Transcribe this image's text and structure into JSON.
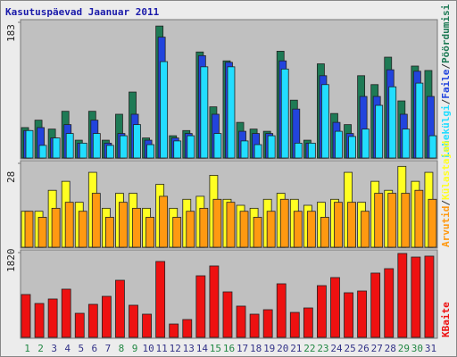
{
  "chart_data": [
    {
      "type": "bar",
      "title": "Kasutuspäevad Jaanuar 2011",
      "ylim": [
        0,
        183
      ],
      "yticks": [
        183
      ],
      "legend": "right",
      "separator": "/",
      "series": [
        {
          "name": "Lehekülgi",
          "color": "#22ddff",
          "values": [
            37,
            17,
            27,
            33,
            20,
            33,
            17,
            30,
            45,
            18,
            130,
            23,
            30,
            123,
            33,
            123,
            23,
            18,
            30,
            120,
            20,
            20,
            99,
            36,
            29,
            39,
            71,
            96,
            39,
            101,
            30
          ]
        },
        {
          "name": "Faile",
          "color": "#2244dd",
          "values": [
            37,
            41,
            27,
            45,
            20,
            51,
            20,
            33,
            59,
            24,
            163,
            27,
            33,
            138,
            59,
            129,
            36,
            33,
            33,
            131,
            66,
            20,
            111,
            48,
            33,
            83,
            83,
            119,
            59,
            117,
            83
          ]
        },
        {
          "name": "Pöördumisi",
          "color": "#1e7a55",
          "values": [
            41,
            51,
            39,
            63,
            24,
            63,
            24,
            59,
            89,
            27,
            178,
            30,
            37,
            143,
            69,
            131,
            48,
            39,
            36,
            144,
            78,
            24,
            127,
            60,
            45,
            111,
            99,
            136,
            77,
            124,
            118
          ]
        }
      ]
    },
    {
      "type": "bar",
      "ylim": [
        0,
        28
      ],
      "yticks": [
        28
      ],
      "legend": "right",
      "separator": "/",
      "series": [
        {
          "name": "Arvutid",
          "color": "#ff9911",
          "values": [
            12,
            10,
            13,
            15,
            12,
            18,
            10,
            15,
            13,
            10,
            17,
            10,
            12,
            13,
            16,
            15,
            12,
            10,
            12,
            16,
            12,
            12,
            10,
            15,
            15,
            12,
            18,
            18,
            18,
            19,
            16
          ]
        },
        {
          "name": "Külastajad",
          "color": "#ffff22",
          "values": [
            12,
            12,
            19,
            22,
            15,
            25,
            13,
            18,
            18,
            13,
            21,
            13,
            16,
            17,
            24,
            16,
            14,
            13,
            16,
            18,
            16,
            14,
            15,
            16,
            25,
            15,
            22,
            19,
            27,
            22,
            25
          ]
        }
      ]
    },
    {
      "type": "bar",
      "ylim": [
        0,
        1820
      ],
      "yticks": [
        1820
      ],
      "legend": "right",
      "categories": [
        "1",
        "2",
        "3",
        "4",
        "5",
        "6",
        "7",
        "8",
        "9",
        "10",
        "11",
        "12",
        "13",
        "14",
        "15",
        "16",
        "17",
        "18",
        "19",
        "20",
        "21",
        "22",
        "23",
        "24",
        "25",
        "26",
        "27",
        "28",
        "29",
        "30",
        "31"
      ],
      "category_colors": [
        "#228844",
        "#228844",
        "#333388",
        "#333388",
        "#333388",
        "#333388",
        "#333388",
        "#228844",
        "#228844",
        "#333388",
        "#333388",
        "#333388",
        "#333388",
        "#333388",
        "#228844",
        "#228844",
        "#333388",
        "#333388",
        "#333388",
        "#333388",
        "#333388",
        "#228844",
        "#228844",
        "#333388",
        "#333388",
        "#333388",
        "#333388",
        "#333388",
        "#228844",
        "#228844",
        "#333388"
      ],
      "series": [
        {
          "name": "KBaite",
          "color": "#ee1111",
          "values": [
            920,
            728,
            824,
            1035,
            517,
            709,
            881,
            1226,
            690,
            498,
            1629,
            287,
            383,
            1322,
            1533,
            977,
            671,
            498,
            594,
            1150,
            536,
            632,
            1111,
            1284,
            958,
            996,
            1380,
            1475,
            1801,
            1724,
            1744
          ]
        }
      ]
    }
  ]
}
